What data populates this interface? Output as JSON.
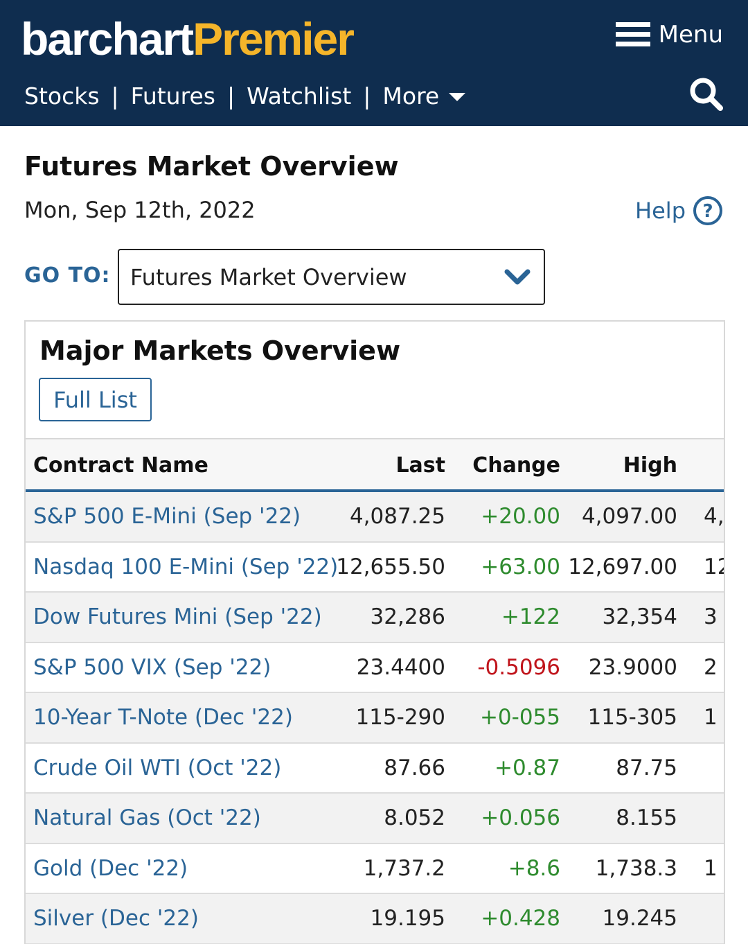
{
  "header": {
    "logo_part1": "barchart",
    "logo_part2": "Premier",
    "menu_label": "Menu",
    "nav": [
      "Stocks",
      "Futures",
      "Watchlist",
      "More"
    ]
  },
  "page": {
    "title": "Futures Market Overview",
    "date": "Mon, Sep 12th, 2022",
    "help_label": "Help"
  },
  "goto": {
    "label": "GO TO:",
    "selected": "Futures Market Overview"
  },
  "panel": {
    "title": "Major Markets Overview",
    "full_list_label": "Full List",
    "columns": [
      "Contract Name",
      "Last",
      "Change",
      "High"
    ],
    "rows": [
      {
        "name": "S&P 500 E-Mini (Sep '22)",
        "last": "4,087.25",
        "change": "+20.00",
        "high": "4,097.00",
        "low_partial": "4,",
        "dir": "up"
      },
      {
        "name": "Nasdaq 100 E-Mini (Sep '22)",
        "last": "12,655.50",
        "change": "+63.00",
        "high": "12,697.00",
        "low_partial": "12,",
        "dir": "up"
      },
      {
        "name": "Dow Futures Mini (Sep '22)",
        "last": "32,286",
        "change": "+122",
        "high": "32,354",
        "low_partial": "3",
        "dir": "up"
      },
      {
        "name": "S&P 500 VIX (Sep '22)",
        "last": "23.4400",
        "change": "-0.5096",
        "high": "23.9000",
        "low_partial": "2",
        "dir": "down"
      },
      {
        "name": "10-Year T-Note (Dec '22)",
        "last": "115-290",
        "change": "+0-055",
        "high": "115-305",
        "low_partial": "1",
        "dir": "up"
      },
      {
        "name": "Crude Oil WTI (Oct '22)",
        "last": "87.66",
        "change": "+0.87",
        "high": "87.75",
        "low_partial": "",
        "dir": "up"
      },
      {
        "name": "Natural Gas (Oct '22)",
        "last": "8.052",
        "change": "+0.056",
        "high": "8.155",
        "low_partial": "",
        "dir": "up"
      },
      {
        "name": "Gold (Dec '22)",
        "last": "1,737.2",
        "change": "+8.6",
        "high": "1,738.3",
        "low_partial": "1",
        "dir": "up"
      },
      {
        "name": "Silver (Dec '22)",
        "last": "19.195",
        "change": "+0.428",
        "high": "19.245",
        "low_partial": "",
        "dir": "up"
      }
    ]
  },
  "colors": {
    "header_bg": "#0f2d4f",
    "brand_accent": "#f5b52a",
    "link_blue": "#2a6496",
    "positive": "#2e8b2e",
    "negative": "#c0141b"
  },
  "icons": [
    "hamburger-icon",
    "search-icon",
    "help-circle-icon",
    "chevron-down-icon",
    "caret-down-icon"
  ]
}
